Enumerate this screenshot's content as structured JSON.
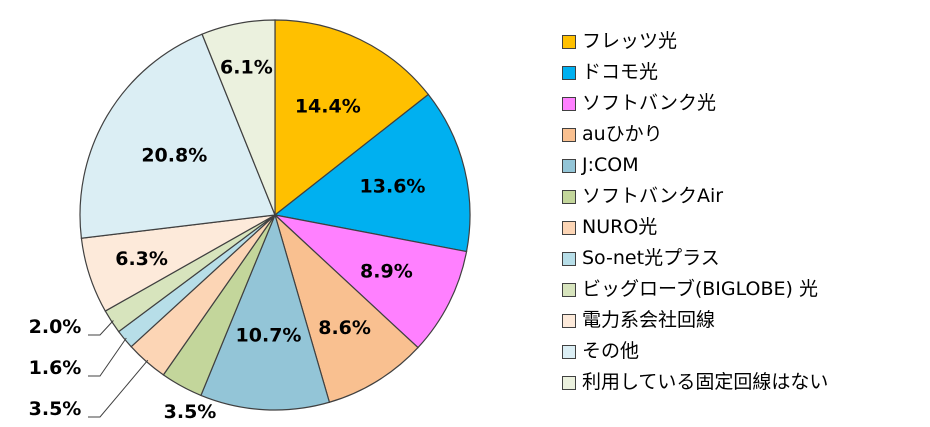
{
  "chart_data": {
    "type": "pie",
    "categories": [
      "フレッツ光",
      "ドコモ光",
      "ソフトバンク光",
      "auひかり",
      "J:COM",
      "ソフトバンクAir",
      "NURO光",
      "So-net光プラス",
      "ビッグローブ(BIGLOBE) 光",
      "電力系会社回線",
      "その他",
      "利用している固定回線はない"
    ],
    "values": [
      14.4,
      13.6,
      8.9,
      8.6,
      10.7,
      3.5,
      3.5,
      1.6,
      2.0,
      6.3,
      20.8,
      6.1
    ],
    "labels": [
      "14.4%",
      "13.6%",
      "8.9%",
      "8.6%",
      "10.7%",
      "3.5%",
      "3.5%",
      "1.6%",
      "2.0%",
      "6.3%",
      "20.8%",
      "6.1%"
    ],
    "colors": [
      "#FFC000",
      "#00B0F0",
      "#FF80FF",
      "#F9C090",
      "#93C5D7",
      "#C3D69B",
      "#FCD5B5",
      "#B7DEE8",
      "#D7E4BD",
      "#FDEADA",
      "#DBEEF4",
      "#EBF1DE"
    ],
    "legend_position": "right"
  }
}
